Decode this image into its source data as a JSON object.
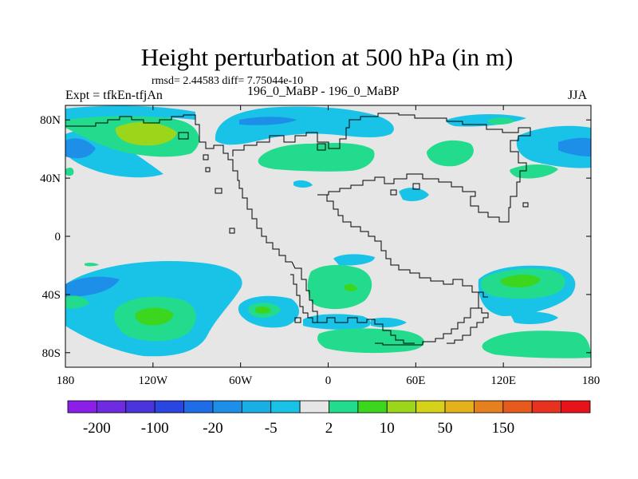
{
  "title": "Height perturbation at 500 hPa (in m)",
  "stats_line": "rmsd= 2.44583 diff= 7.75044e-10",
  "left_label": "Expt = tfkEn-tfjAn",
  "center_label": "196_0_MaBP - 196_0_MaBP",
  "right_label": "JJA",
  "map": {
    "lon_range": [
      -180,
      180
    ],
    "lat_range": [
      -90,
      90
    ],
    "background_color": "#e6e6e6",
    "lon_ticks": [
      {
        "value": -180,
        "label": "180"
      },
      {
        "value": -120,
        "label": "120W"
      },
      {
        "value": -60,
        "label": "60W"
      },
      {
        "value": 0,
        "label": "0"
      },
      {
        "value": 60,
        "label": "60E"
      },
      {
        "value": 120,
        "label": "120E"
      },
      {
        "value": 180,
        "label": "180"
      }
    ],
    "lat_ticks": [
      {
        "value": 80,
        "label": "80N"
      },
      {
        "value": 40,
        "label": "40N"
      },
      {
        "value": 0,
        "label": "0"
      },
      {
        "value": -40,
        "label": "40S"
      },
      {
        "value": -80,
        "label": "80S"
      }
    ]
  },
  "colorbar": {
    "colors": [
      "#8b1fe8",
      "#6e2be0",
      "#4b34dc",
      "#2a46e0",
      "#1e6ce6",
      "#1e8fe9",
      "#19aee6",
      "#19c3e8",
      "#e6e6e6",
      "#23db8c",
      "#3cd61e",
      "#9cd61a",
      "#d6d21a",
      "#e6b21a",
      "#e6801e",
      "#e65a1e",
      "#e6321e",
      "#e6141a"
    ],
    "labels": [
      "-200",
      "-100",
      "-20",
      "-5",
      "2",
      "10",
      "50",
      "150"
    ]
  }
}
